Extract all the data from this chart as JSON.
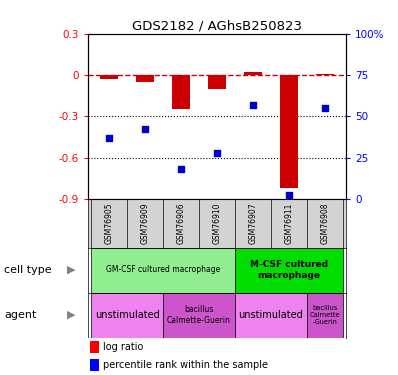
{
  "title": "GDS2182 / AGhsB250823",
  "samples": [
    "GSM76905",
    "GSM76909",
    "GSM76906",
    "GSM76910",
    "GSM76907",
    "GSM76911",
    "GSM76908"
  ],
  "log_ratio": [
    -0.03,
    -0.05,
    -0.25,
    -0.1,
    0.02,
    -0.82,
    0.01
  ],
  "pct_rank": [
    37,
    42,
    18,
    28,
    57,
    2,
    55
  ],
  "ylim_left": [
    -0.9,
    0.3
  ],
  "yticks_left": [
    0.3,
    0.0,
    -0.3,
    -0.6,
    -0.9
  ],
  "yticks_right": [
    100,
    75,
    50,
    25,
    0
  ],
  "bar_color": "#cc0000",
  "dot_color": "#0000cc",
  "dashed_color": "#cc0000",
  "cell_type_color_gm": "#90ee90",
  "cell_type_color_mcsf": "#00dd00",
  "agent_color_unstim": "#ee82ee",
  "agent_color_bcg": "#cc55cc",
  "sample_bg": "#d3d3d3",
  "background_color": "#ffffff"
}
